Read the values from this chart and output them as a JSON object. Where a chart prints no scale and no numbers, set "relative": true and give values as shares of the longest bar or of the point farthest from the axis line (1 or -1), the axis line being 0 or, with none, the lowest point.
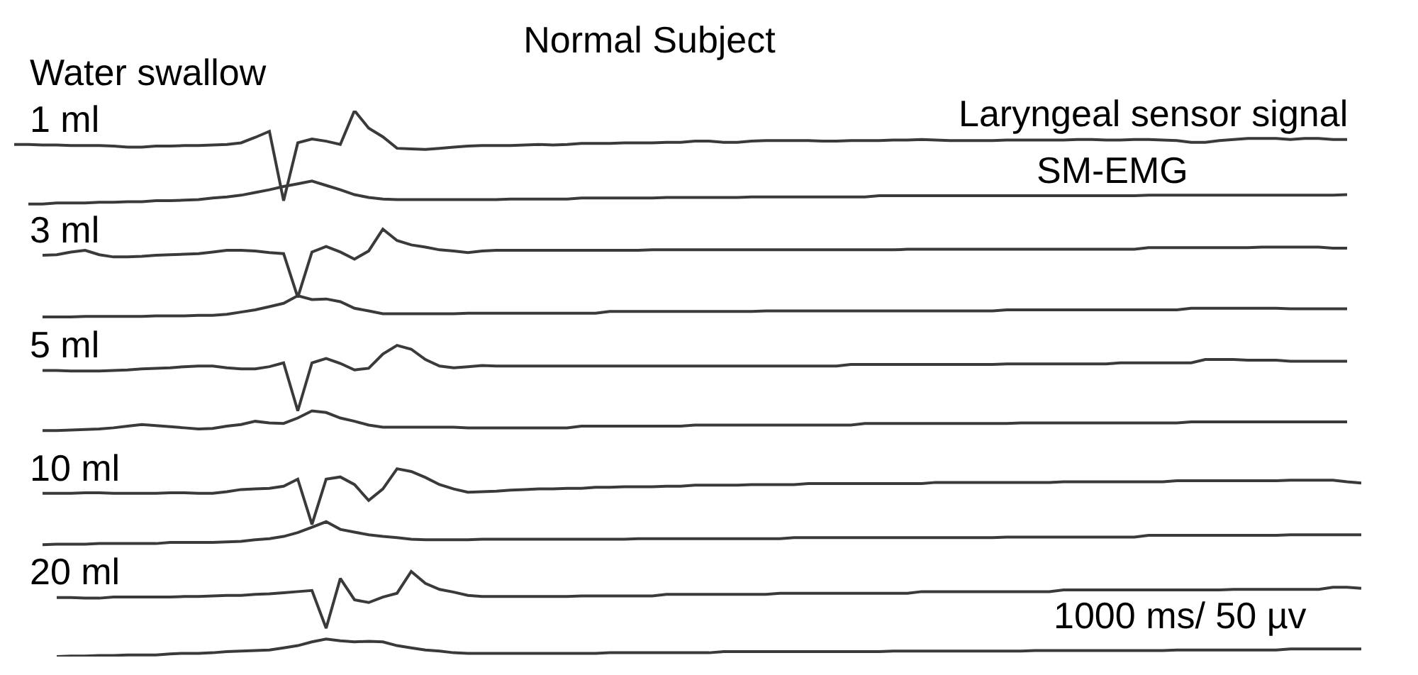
{
  "chart_data": {
    "type": "line",
    "title": "Normal Subject",
    "relative": true,
    "legend": false,
    "annotations": [
      "Water swallow",
      {
        "text": "Laryngeal sensor signal",
        "y": 0.947
      },
      {
        "text": "SM-EMG",
        "y": 0.844
      },
      "1000 ms/ 50 µv"
    ],
    "categories": [
      null,
      null,
      null,
      null,
      null,
      null,
      null,
      null,
      null,
      null,
      null,
      null,
      null,
      null,
      null,
      null,
      null,
      null,
      null,
      null,
      null,
      null,
      null,
      null,
      null,
      null,
      null,
      null,
      null,
      null,
      null,
      null,
      null,
      null,
      null,
      null,
      null,
      null,
      null,
      null,
      null,
      null,
      null,
      null,
      null,
      null,
      null,
      null,
      null,
      null,
      null,
      null,
      null,
      null,
      null,
      null,
      null,
      null,
      null,
      null,
      null,
      null,
      null,
      null,
      null,
      null,
      null,
      null,
      null,
      null,
      null,
      null,
      null,
      null,
      null,
      null,
      null,
      null,
      null,
      null,
      null,
      null,
      null,
      null,
      null,
      null,
      null,
      null,
      null,
      null,
      null,
      null,
      null,
      null,
      null,
      null
    ],
    "series": [
      {
        "name": "1 ml",
        "color": "#3a3a3a",
        "values": [
          0.938,
          0.938,
          0.937,
          0.937,
          0.936,
          0.936,
          0.936,
          0.935,
          0.933,
          0.933,
          0.935,
          0.935,
          0.936,
          0.936,
          0.937,
          0.938,
          0.941,
          0.951,
          0.962,
          0.835,
          0.941,
          0.948,
          0.944,
          0.938,
          1,
          0.968,
          0.952,
          0.931,
          0.93,
          0.929,
          0.931,
          0.933,
          0.935,
          0.936,
          0.936,
          0.936,
          0.937,
          0.938,
          0.937,
          0.938,
          0.94,
          0.94,
          0.94,
          0.941,
          0.941,
          0.941,
          0.942,
          0.942,
          0.944,
          0.944,
          0.942,
          0.942,
          0.944,
          0.945,
          0.945,
          0.945,
          0.945,
          0.944,
          0.944,
          0.945,
          0.945,
          0.945,
          0.946,
          0.946,
          0.947,
          0.946,
          0.945,
          0.945,
          0.945,
          0.945,
          0.946,
          0.946,
          0.946,
          0.946,
          0.946,
          0.947,
          0.947,
          0.946,
          0.946,
          0.947,
          0.947,
          0.946,
          0.945,
          0.942,
          0.942,
          0.945,
          0.947,
          0.949,
          0.949,
          0.949,
          0.947,
          0.949,
          0.949,
          0.947,
          0.947,
          null
        ]
      },
      {
        "color": "#3a3a3a",
        "values": [
          null,
          0.829,
          0.829,
          0.831,
          0.831,
          0.831,
          0.832,
          0.832,
          0.833,
          0.833,
          0.835,
          0.835,
          0.836,
          0.837,
          0.84,
          0.842,
          0.845,
          0.85,
          0.855,
          0.861,
          0.866,
          0.871,
          0.863,
          0.855,
          0.846,
          0.841,
          0.838,
          0.837,
          0.837,
          0.837,
          0.837,
          0.837,
          0.837,
          0.837,
          0.837,
          0.838,
          0.838,
          0.838,
          0.838,
          0.838,
          0.84,
          0.84,
          0.84,
          0.84,
          0.84,
          0.84,
          0.841,
          0.841,
          0.841,
          0.841,
          0.841,
          0.841,
          0.842,
          0.842,
          0.842,
          0.842,
          0.842,
          0.842,
          0.842,
          0.842,
          0.842,
          0.844,
          0.844,
          0.844,
          0.844,
          0.844,
          0.844,
          0.844,
          0.844,
          0.844,
          0.844,
          0.844,
          0.844,
          0.844,
          0.844,
          0.844,
          0.844,
          0.844,
          0.844,
          0.844,
          0.845,
          0.845,
          0.845,
          0.845,
          0.845,
          0.845,
          0.845,
          0.845,
          0.845,
          0.845,
          0.845,
          0.845,
          0.845,
          0.845,
          0.846,
          null
        ]
      },
      {
        "name": "3 ml",
        "color": "#3a3a3a",
        "values": [
          null,
          null,
          0.735,
          0.736,
          0.741,
          0.744,
          0.736,
          0.732,
          0.732,
          0.733,
          0.735,
          0.736,
          0.737,
          0.738,
          0.741,
          0.744,
          0.744,
          0.743,
          0.74,
          0.738,
          0.658,
          0.741,
          0.751,
          0.741,
          0.728,
          0.743,
          0.783,
          0.762,
          0.754,
          0.75,
          0.745,
          0.743,
          0.74,
          0.743,
          0.744,
          0.744,
          0.744,
          0.744,
          0.744,
          0.744,
          0.744,
          0.744,
          0.744,
          0.744,
          0.744,
          0.745,
          0.745,
          0.745,
          0.745,
          0.745,
          0.745,
          0.745,
          0.745,
          0.745,
          0.745,
          0.745,
          0.745,
          0.745,
          0.745,
          0.745,
          0.745,
          0.745,
          0.745,
          0.746,
          0.746,
          0.746,
          0.746,
          0.746,
          0.746,
          0.746,
          0.746,
          0.746,
          0.746,
          0.746,
          0.746,
          0.746,
          0.746,
          0.746,
          0.746,
          0.746,
          0.749,
          0.749,
          0.749,
          0.749,
          0.749,
          0.749,
          0.749,
          0.749,
          0.75,
          0.75,
          0.75,
          0.75,
          0.75,
          0.748,
          0.748,
          null
        ]
      },
      {
        "color": "#3a3a3a",
        "values": [
          null,
          null,
          0.622,
          0.622,
          0.622,
          0.623,
          0.623,
          0.623,
          0.623,
          0.623,
          0.624,
          0.624,
          0.624,
          0.625,
          0.625,
          0.627,
          0.631,
          0.635,
          0.641,
          0.647,
          0.661,
          0.654,
          0.655,
          0.65,
          0.638,
          0.633,
          0.628,
          0.628,
          0.628,
          0.628,
          0.628,
          0.628,
          0.629,
          0.629,
          0.629,
          0.629,
          0.629,
          0.629,
          0.629,
          0.629,
          0.629,
          0.629,
          0.632,
          0.632,
          0.632,
          0.632,
          0.632,
          0.632,
          0.632,
          0.632,
          0.632,
          0.632,
          0.632,
          0.633,
          0.633,
          0.633,
          0.633,
          0.633,
          0.633,
          0.633,
          0.633,
          0.633,
          0.633,
          0.633,
          0.633,
          0.633,
          0.633,
          0.633,
          0.633,
          0.633,
          0.635,
          0.635,
          0.635,
          0.635,
          0.635,
          0.635,
          0.635,
          0.635,
          0.635,
          0.635,
          0.635,
          0.635,
          0.635,
          0.638,
          0.638,
          0.638,
          0.638,
          0.638,
          0.638,
          0.638,
          0.637,
          0.637,
          0.637,
          0.637,
          0.637,
          null
        ]
      },
      {
        "name": "5 ml",
        "color": "#3a3a3a",
        "values": [
          null,
          null,
          0.524,
          0.524,
          0.523,
          0.523,
          0.523,
          0.524,
          0.525,
          0.527,
          0.528,
          0.529,
          0.531,
          0.532,
          0.532,
          0.529,
          0.527,
          0.527,
          0.531,
          0.538,
          0.45,
          0.538,
          0.546,
          0.537,
          0.525,
          0.528,
          0.554,
          0.57,
          0.563,
          0.544,
          0.532,
          0.529,
          0.531,
          0.533,
          0.532,
          0.532,
          0.532,
          0.532,
          0.532,
          0.532,
          0.532,
          0.532,
          0.532,
          0.532,
          0.532,
          0.532,
          0.532,
          0.532,
          0.532,
          0.532,
          0.532,
          0.532,
          0.532,
          0.532,
          0.532,
          0.532,
          0.532,
          0.532,
          0.532,
          0.535,
          0.535,
          0.535,
          0.535,
          0.535,
          0.535,
          0.535,
          0.535,
          0.535,
          0.535,
          0.535,
          0.536,
          0.536,
          0.536,
          0.536,
          0.536,
          0.536,
          0.536,
          0.536,
          0.538,
          0.538,
          0.538,
          0.538,
          0.538,
          0.538,
          0.544,
          0.544,
          0.544,
          0.543,
          0.543,
          0.543,
          0.541,
          0.541,
          0.541,
          0.541,
          0.541,
          null
        ]
      },
      {
        "color": "#3a3a3a",
        "values": [
          null,
          null,
          0.414,
          0.414,
          0.415,
          0.416,
          0.417,
          0.419,
          0.422,
          0.425,
          0.423,
          0.421,
          0.419,
          0.417,
          0.418,
          0.422,
          0.425,
          0.431,
          0.428,
          0.427,
          0.437,
          0.45,
          0.447,
          0.437,
          0.431,
          0.424,
          0.42,
          0.42,
          0.42,
          0.42,
          0.42,
          0.42,
          0.419,
          0.419,
          0.419,
          0.419,
          0.419,
          0.419,
          0.419,
          0.419,
          0.422,
          0.422,
          0.422,
          0.422,
          0.422,
          0.422,
          0.422,
          0.422,
          0.424,
          0.424,
          0.424,
          0.424,
          0.424,
          0.424,
          0.424,
          0.424,
          0.424,
          0.424,
          0.424,
          0.424,
          0.427,
          0.427,
          0.427,
          0.427,
          0.427,
          0.427,
          0.427,
          0.427,
          0.427,
          0.427,
          0.427,
          0.428,
          0.428,
          0.428,
          0.428,
          0.428,
          0.428,
          0.428,
          0.428,
          0.428,
          0.428,
          0.428,
          0.428,
          0.43,
          0.43,
          0.43,
          0.43,
          0.43,
          0.43,
          0.43,
          0.43,
          0.43,
          0.43,
          0.43,
          0.43,
          null
        ]
      },
      {
        "name": "10 ml",
        "color": "#3a3a3a",
        "values": [
          null,
          null,
          0.299,
          0.299,
          0.299,
          0.3,
          0.3,
          0.299,
          0.299,
          0.299,
          0.299,
          0.3,
          0.3,
          0.299,
          0.299,
          0.302,
          0.306,
          0.307,
          0.308,
          0.312,
          0.325,
          0.242,
          0.325,
          0.329,
          0.315,
          0.286,
          0.307,
          0.344,
          0.339,
          0.328,
          0.315,
          0.307,
          0.301,
          0.302,
          0.303,
          0.305,
          0.306,
          0.307,
          0.307,
          0.308,
          0.308,
          0.31,
          0.31,
          0.311,
          0.311,
          0.311,
          0.312,
          0.312,
          0.314,
          0.314,
          0.314,
          0.314,
          0.315,
          0.315,
          0.315,
          0.315,
          0.317,
          0.317,
          0.317,
          0.317,
          0.317,
          0.317,
          0.317,
          0.317,
          0.317,
          0.319,
          0.319,
          0.319,
          0.319,
          0.319,
          0.319,
          0.319,
          0.319,
          0.319,
          0.32,
          0.32,
          0.32,
          0.32,
          0.32,
          0.32,
          0.32,
          0.32,
          0.322,
          0.322,
          0.322,
          0.322,
          0.322,
          0.322,
          0.322,
          0.322,
          0.323,
          0.323,
          0.323,
          0.323,
          0.32,
          0.318
        ]
      },
      {
        "color": "#3a3a3a",
        "values": [
          null,
          null,
          0.205,
          0.206,
          0.206,
          0.206,
          0.207,
          0.207,
          0.207,
          0.207,
          0.207,
          0.209,
          0.209,
          0.209,
          0.209,
          0.21,
          0.211,
          0.214,
          0.216,
          0.22,
          0.227,
          0.237,
          0.247,
          0.233,
          0.228,
          0.223,
          0.22,
          0.218,
          0.215,
          0.214,
          0.214,
          0.214,
          0.214,
          0.215,
          0.215,
          0.215,
          0.215,
          0.215,
          0.215,
          0.215,
          0.215,
          0.215,
          0.215,
          0.215,
          0.216,
          0.216,
          0.216,
          0.216,
          0.216,
          0.216,
          0.216,
          0.216,
          0.216,
          0.216,
          0.216,
          0.218,
          0.218,
          0.218,
          0.218,
          0.218,
          0.218,
          0.218,
          0.218,
          0.218,
          0.218,
          0.218,
          0.218,
          0.218,
          0.218,
          0.218,
          0.219,
          0.219,
          0.219,
          0.219,
          0.219,
          0.219,
          0.219,
          0.219,
          0.219,
          0.219,
          0.222,
          0.222,
          0.222,
          0.222,
          0.222,
          0.222,
          0.222,
          0.222,
          0.222,
          0.222,
          0.223,
          0.223,
          0.223,
          0.223,
          0.223,
          0.223
        ]
      },
      {
        "name": "20 ml",
        "color": "#3a3a3a",
        "values": [
          null,
          null,
          null,
          0.108,
          0.108,
          0.107,
          0.107,
          0.109,
          0.109,
          0.109,
          0.109,
          0.109,
          0.11,
          0.11,
          0.111,
          0.112,
          0.112,
          0.114,
          0.115,
          0.117,
          0.119,
          0.121,
          0.052,
          0.143,
          0.104,
          0.099,
          0.109,
          0.116,
          0.156,
          0.134,
          0.123,
          0.118,
          0.112,
          0.11,
          0.11,
          0.11,
          0.11,
          0.11,
          0.11,
          0.11,
          0.111,
          0.111,
          0.111,
          0.111,
          0.111,
          0.111,
          0.114,
          0.114,
          0.114,
          0.114,
          0.114,
          0.114,
          0.114,
          0.114,
          0.116,
          0.116,
          0.116,
          0.116,
          0.116,
          0.116,
          0.116,
          0.116,
          0.116,
          0.116,
          0.119,
          0.119,
          0.119,
          0.119,
          0.119,
          0.119,
          0.119,
          0.119,
          0.119,
          0.119,
          0.122,
          0.122,
          0.122,
          0.122,
          0.122,
          0.122,
          0.122,
          0.122,
          0.122,
          0.122,
          0.122,
          0.122,
          0.123,
          0.123,
          0.123,
          0.123,
          0.123,
          0.123,
          0.123,
          0.127,
          0.127,
          0.125
        ]
      },
      {
        "color": "#3a3a3a",
        "values": [
          null,
          null,
          null,
          0,
          0.001,
          0.001,
          0.002,
          0.002,
          0.003,
          0.003,
          0.003,
          0.005,
          0.006,
          0.006,
          0.007,
          0.009,
          0.01,
          0.011,
          0.012,
          0.016,
          0.02,
          0.027,
          0.032,
          0.029,
          0.027,
          0.028,
          0.027,
          0.02,
          0.016,
          0.012,
          0.01,
          0.007,
          0.006,
          0.006,
          0.006,
          0.006,
          0.006,
          0.006,
          0.006,
          0.006,
          0.006,
          0.006,
          0.007,
          0.007,
          0.007,
          0.007,
          0.007,
          0.007,
          0.007,
          0.007,
          0.009,
          0.009,
          0.009,
          0.009,
          0.009,
          0.009,
          0.009,
          0.009,
          0.009,
          0.009,
          0.009,
          0.009,
          0.01,
          0.01,
          0.01,
          0.01,
          0.01,
          0.01,
          0.01,
          0.01,
          0.01,
          0.01,
          0.011,
          0.011,
          0.011,
          0.011,
          0.011,
          0.011,
          0.011,
          0.011,
          0.011,
          0.011,
          0.012,
          0.012,
          0.012,
          0.012,
          0.012,
          0.012,
          0.012,
          0.012,
          0.014,
          0.014,
          0.014,
          0.014,
          0.014,
          0.014
        ]
      }
    ]
  }
}
